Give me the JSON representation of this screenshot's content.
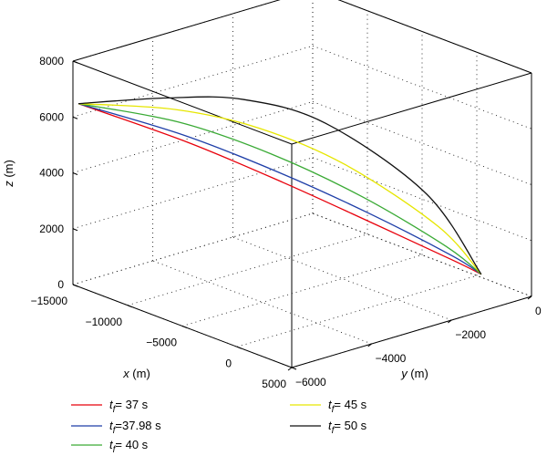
{
  "chart_data": {
    "type": "line",
    "projection": "3d",
    "title": "",
    "xlabel": "x (m)",
    "ylabel": "y (m)",
    "zlabel": "z (m)",
    "xlim": [
      -15000,
      5000
    ],
    "ylim": [
      -6000,
      0
    ],
    "zlim": [
      0,
      8000
    ],
    "x_ticks": [
      -15000,
      -10000,
      -5000,
      0,
      5000
    ],
    "x_tick_labels": [
      "−15000",
      "−10000",
      "−5000",
      "0",
      "5000"
    ],
    "y_ticks": [
      -6000,
      -4000,
      -2000,
      0
    ],
    "y_tick_labels": [
      "−6000",
      "−4000",
      "−2000",
      "0"
    ],
    "z_ticks": [
      0,
      2000,
      4000,
      6000,
      8000
    ],
    "z_tick_labels": [
      "0",
      "2000",
      "4000",
      "6000",
      "8000"
    ],
    "grid": true,
    "legend_placement": "bottom",
    "series": [
      {
        "name_prefix": "t",
        "name_sub": "f",
        "name_suffix": "= 37 s",
        "color": "#e8000b",
        "points": [
          [
            -14500,
            -6000,
            6550
          ],
          [
            -10000,
            -4500,
            5200
          ],
          [
            -6000,
            -3200,
            3800
          ],
          [
            -2500,
            -1900,
            2300
          ],
          [
            500,
            -700,
            900
          ],
          [
            1500,
            -300,
            400
          ]
        ]
      },
      {
        "name_prefix": "t",
        "name_sub": "f",
        "name_suffix": "=37.98 s",
        "color": "#1f3fa8",
        "points": [
          [
            -14500,
            -6000,
            6550
          ],
          [
            -10000,
            -4600,
            5500
          ],
          [
            -6000,
            -3300,
            4200
          ],
          [
            -2500,
            -2000,
            2700
          ],
          [
            500,
            -750,
            1100
          ],
          [
            1500,
            -300,
            400
          ]
        ]
      },
      {
        "name_prefix": "t",
        "name_sub": "f",
        "name_suffix": "= 40 s",
        "color": "#3aaa35",
        "points": [
          [
            -14500,
            -6000,
            6550
          ],
          [
            -10000,
            -4700,
            6000
          ],
          [
            -6000,
            -3500,
            4950
          ],
          [
            -2500,
            -2200,
            3400
          ],
          [
            500,
            -900,
            1500
          ],
          [
            1500,
            -300,
            400
          ]
        ]
      },
      {
        "name_prefix": "t",
        "name_sub": "f",
        "name_suffix": "= 45 s",
        "color": "#e6e600",
        "points": [
          [
            -14500,
            -6000,
            6550
          ],
          [
            -10000,
            -4800,
            6500
          ],
          [
            -6000,
            -3800,
            6000
          ],
          [
            -2500,
            -2600,
            4700
          ],
          [
            500,
            -1100,
            2300
          ],
          [
            1500,
            -300,
            400
          ]
        ]
      },
      {
        "name_prefix": "t",
        "name_sub": "f",
        "name_suffix": "= 50 s",
        "color": "#111111",
        "points": [
          [
            -14500,
            -6000,
            6550
          ],
          [
            -10000,
            -5000,
            7000
          ],
          [
            -6000,
            -4200,
            7200
          ],
          [
            -2500,
            -3100,
            6400
          ],
          [
            500,
            -1400,
            3600
          ],
          [
            1500,
            -300,
            400
          ]
        ]
      }
    ]
  }
}
